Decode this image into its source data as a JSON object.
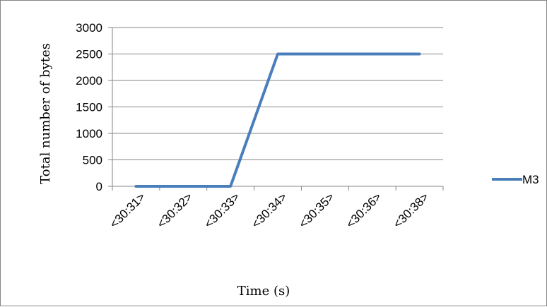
{
  "chart_data": {
    "type": "line",
    "title": "",
    "xlabel": "Time (s)",
    "ylabel": "Total number of bytes",
    "categories": [
      "<30:31>",
      "<30:32>",
      "<30:33>",
      "<30:34>",
      "<30:35>",
      "<30:36>",
      "<30:38>"
    ],
    "series": [
      {
        "name": "M3",
        "values": [
          0,
          0,
          0,
          2500,
          2500,
          2500,
          2500
        ]
      }
    ],
    "ylim": [
      0,
      3000
    ],
    "yticks": [
      "0",
      "500",
      "1000",
      "1500",
      "2000",
      "2500",
      "3000"
    ],
    "grid": "horizontal",
    "legend": "right",
    "colors": {
      "series": "#4a7ebb",
      "grid": "#868686",
      "axis": "#868686"
    }
  }
}
